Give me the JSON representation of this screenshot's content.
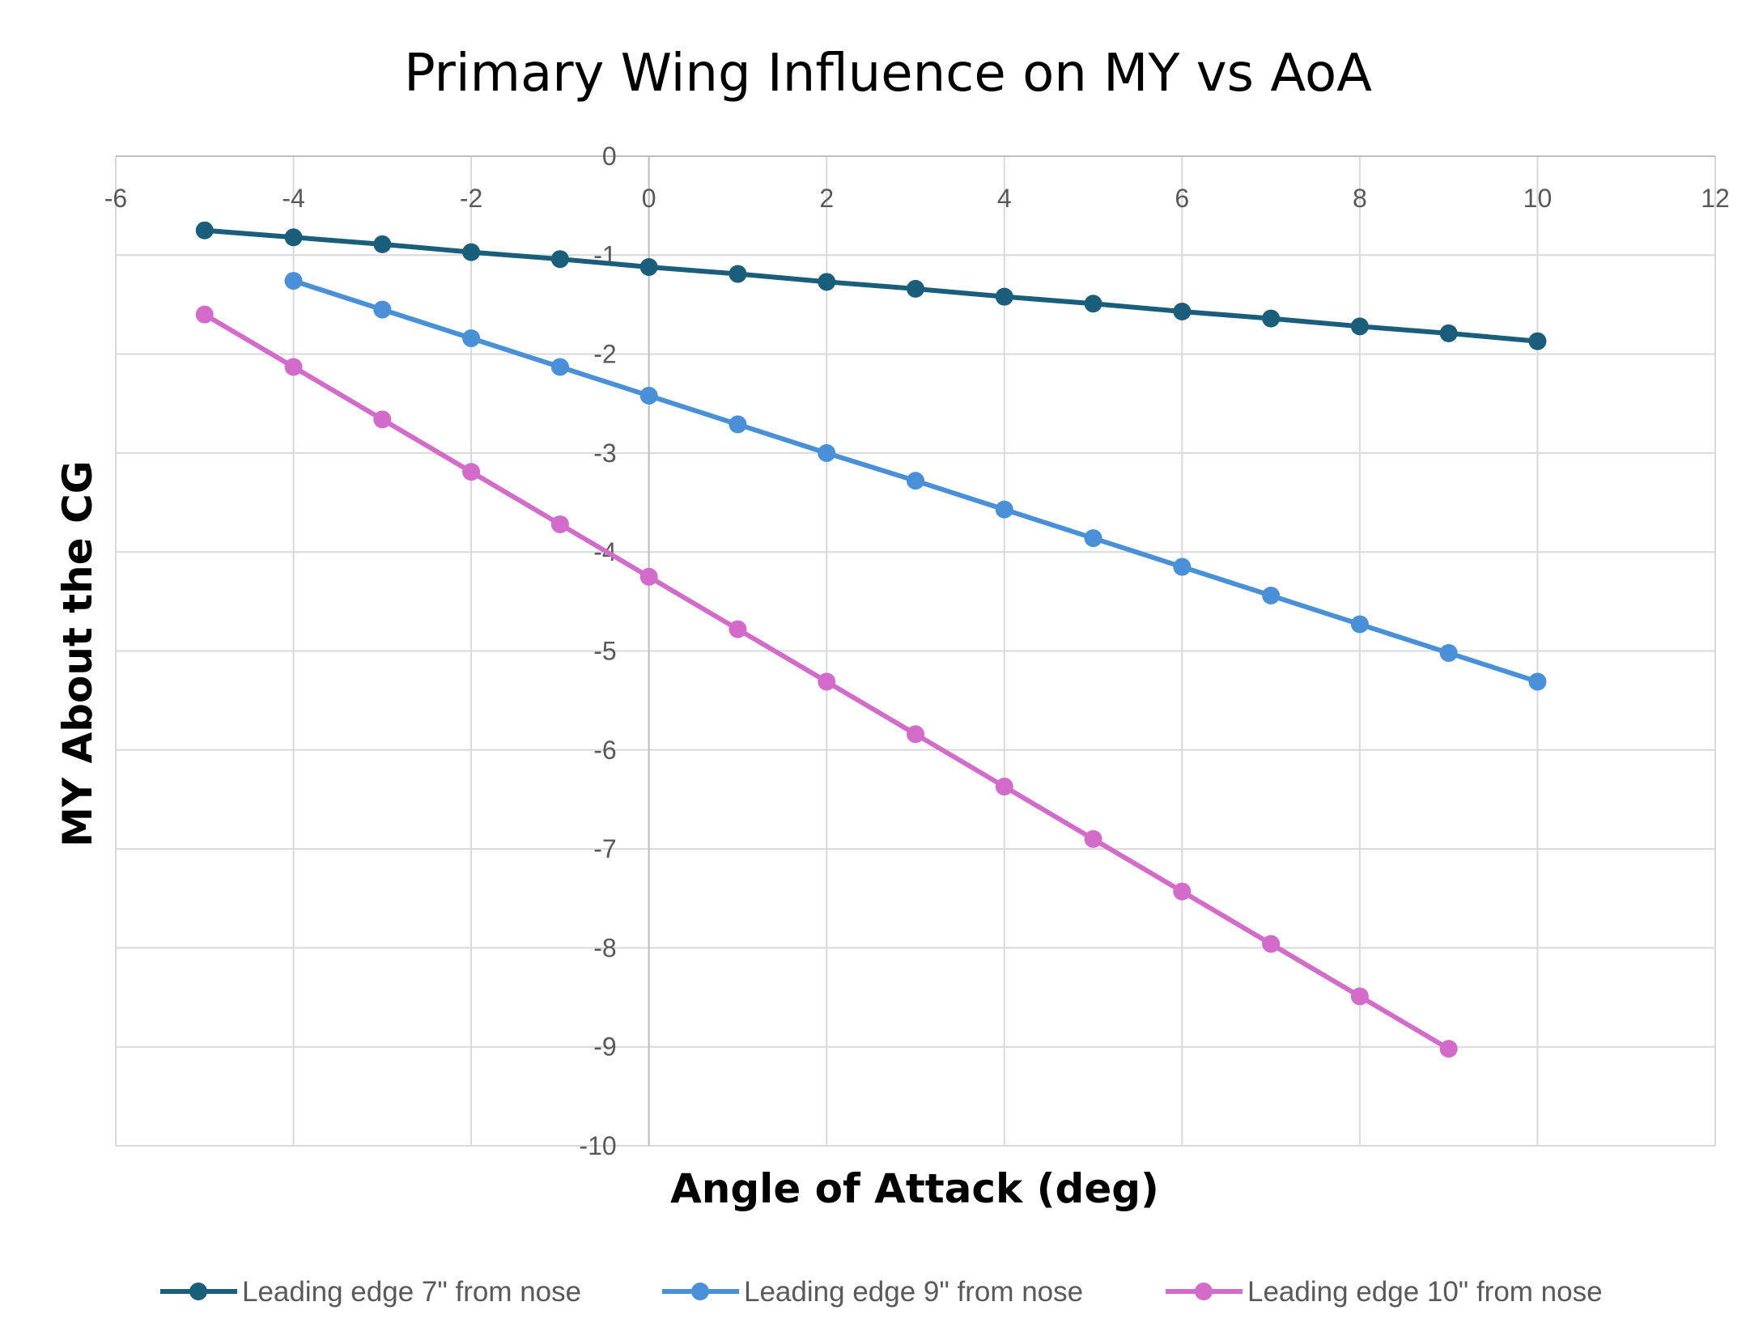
{
  "chart_data": {
    "type": "line",
    "title": "Primary Wing Influence on MY vs AoA",
    "xlabel": "Angle of Attack (deg)",
    "ylabel": "MY About the CG",
    "xlim": [
      -6,
      12
    ],
    "ylim": [
      -10,
      0
    ],
    "x_ticks": [
      -6,
      -4,
      -2,
      0,
      2,
      4,
      6,
      8,
      10,
      12
    ],
    "y_ticks": [
      0,
      -1,
      -2,
      -3,
      -4,
      -5,
      -6,
      -7,
      -8,
      -9,
      -10
    ],
    "x_tick_labels": [
      "-6",
      "-4",
      "-2",
      "0",
      "2",
      "4",
      "6",
      "8",
      "10",
      "12"
    ],
    "y_tick_labels": [
      "0",
      "-1",
      "-2",
      "-3",
      "-4",
      "-5",
      "-6",
      "-7",
      "-8",
      "-9",
      "-10"
    ],
    "grid": true,
    "legend_position": "bottom",
    "series": [
      {
        "name": "Leading edge 7\" from nose",
        "color": "#1b5e7c",
        "x": [
          -5,
          -4,
          -3,
          -2,
          -1,
          0,
          1,
          2,
          3,
          4,
          5,
          6,
          7,
          8,
          9,
          10
        ],
        "y": [
          -0.75,
          -0.82,
          -0.89,
          -0.97,
          -1.04,
          -1.12,
          -1.19,
          -1.27,
          -1.34,
          -1.42,
          -1.49,
          -1.57,
          -1.64,
          -1.72,
          -1.79,
          -1.87
        ]
      },
      {
        "name": "Leading edge 9\" from nose",
        "color": "#4a90d9",
        "x": [
          -4,
          -3,
          -2,
          -1,
          0,
          1,
          2,
          3,
          4,
          5,
          6,
          7,
          8,
          9,
          10
        ],
        "y": [
          -1.26,
          -1.55,
          -1.84,
          -2.13,
          -2.42,
          -2.71,
          -3.0,
          -3.28,
          -3.57,
          -3.86,
          -4.15,
          -4.44,
          -4.73,
          -5.02,
          -5.31
        ]
      },
      {
        "name": "Leading edge 10\"  from nose",
        "color": "#d36bcb",
        "x": [
          -5,
          -4,
          -3,
          -2,
          -1,
          0,
          1,
          2,
          3,
          4,
          5,
          6,
          7,
          8,
          9
        ],
        "y": [
          -1.6,
          -2.13,
          -2.66,
          -3.19,
          -3.72,
          -4.25,
          -4.78,
          -5.31,
          -5.84,
          -6.37,
          -6.9,
          -7.43,
          -7.96,
          -8.49,
          -9.02
        ]
      }
    ]
  }
}
